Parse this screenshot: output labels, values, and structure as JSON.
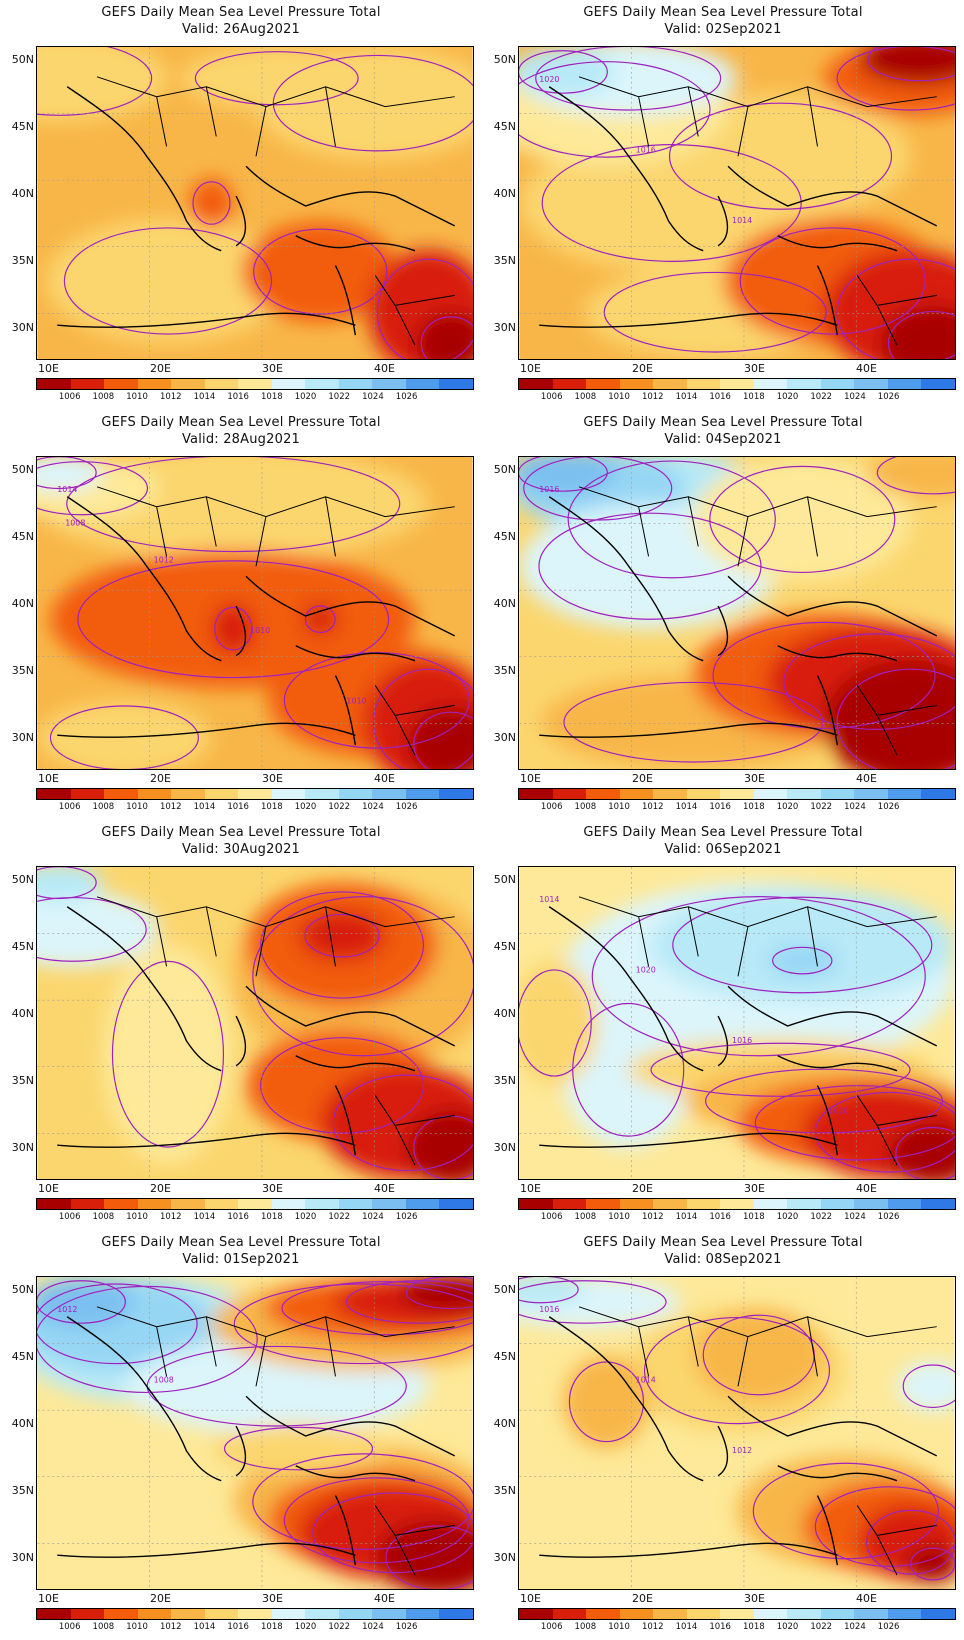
{
  "title_prefix": "GEFS Daily Mean Sea Level Pressure Total",
  "colorbar": {
    "colors": [
      "#a80000",
      "#d81f0a",
      "#f25c0a",
      "#f59021",
      "#f8b648",
      "#fbd66e",
      "#fde999",
      "#dbf5fb",
      "#b7e9f7",
      "#95d6f4",
      "#7abff0",
      "#4f9cec",
      "#2f79e6"
    ],
    "labels": [
      "1006",
      "1008",
      "1010",
      "1012",
      "1014",
      "1016",
      "1018",
      "1020",
      "1022",
      "1024",
      "1026"
    ]
  },
  "lat_labels": [
    "50N",
    "45N",
    "40N",
    "35N",
    "30N"
  ],
  "lon_labels": [
    "10E",
    "20E",
    "30E",
    "40E"
  ],
  "panels": [
    {
      "title": "GEFS Daily Mean Sea Level Pressure Total",
      "valid": "Valid: 26Aug2021",
      "bg": "#f8b648",
      "blobs": [
        [
          "#fbd66e",
          0.05,
          0.1,
          0.25,
          0.14
        ],
        [
          "#fbd66e",
          0.78,
          0.18,
          0.28,
          0.18
        ],
        [
          "#fbd66e",
          0.3,
          0.75,
          0.28,
          0.2
        ],
        [
          "#fbd66e",
          0.55,
          0.1,
          0.22,
          0.1
        ],
        [
          "#f25c0a",
          0.4,
          0.5,
          0.05,
          0.08
        ],
        [
          "#f25c0a",
          0.65,
          0.72,
          0.18,
          0.16
        ],
        [
          "#d81f0a",
          0.9,
          0.85,
          0.14,
          0.2
        ],
        [
          "#a80000",
          0.95,
          0.95,
          0.08,
          0.1
        ]
      ],
      "contour_labels": []
    },
    {
      "title": "GEFS Daily Mean Sea Level Pressure Total",
      "valid": "Valid: 02Sep2021",
      "bg": "#f8b648",
      "blobs": [
        [
          "#fbd66e",
          0.35,
          0.5,
          0.35,
          0.22
        ],
        [
          "#fbd66e",
          0.6,
          0.35,
          0.3,
          0.2
        ],
        [
          "#fde999",
          0.2,
          0.2,
          0.28,
          0.18
        ],
        [
          "#dbf5fb",
          0.25,
          0.1,
          0.25,
          0.12
        ],
        [
          "#b7e9f7",
          0.1,
          0.08,
          0.12,
          0.08
        ],
        [
          "#fbd66e",
          0.45,
          0.85,
          0.3,
          0.15
        ],
        [
          "#f25c0a",
          0.72,
          0.75,
          0.25,
          0.2
        ],
        [
          "#d81f0a",
          0.9,
          0.85,
          0.2,
          0.2
        ],
        [
          "#a80000",
          0.95,
          0.95,
          0.12,
          0.12
        ],
        [
          "#f25c0a",
          0.9,
          0.1,
          0.2,
          0.12
        ],
        [
          "#a80000",
          0.92,
          0.04,
          0.14,
          0.08
        ]
      ],
      "contour_labels": [
        "1020",
        "1016",
        "1014"
      ]
    },
    {
      "title": "GEFS Daily Mean Sea Level Pressure Total",
      "valid": "Valid: 28Aug2021",
      "bg": "#f8b648",
      "blobs": [
        [
          "#fbd66e",
          0.45,
          0.15,
          0.45,
          0.18
        ],
        [
          "#fde999",
          0.1,
          0.1,
          0.18,
          0.1
        ],
        [
          "#dbf5fb",
          0.05,
          0.05,
          0.1,
          0.06
        ],
        [
          "#f25c0a",
          0.45,
          0.52,
          0.42,
          0.22
        ],
        [
          "#d81f0a",
          0.45,
          0.55,
          0.05,
          0.08
        ],
        [
          "#d81f0a",
          0.65,
          0.52,
          0.04,
          0.05
        ],
        [
          "#f25c0a",
          0.78,
          0.78,
          0.25,
          0.18
        ],
        [
          "#d81f0a",
          0.9,
          0.85,
          0.15,
          0.2
        ],
        [
          "#a80000",
          0.95,
          0.92,
          0.1,
          0.12
        ],
        [
          "#fbd66e",
          0.2,
          0.9,
          0.2,
          0.12
        ]
      ],
      "contour_labels": [
        "1014",
        "1012",
        "1010",
        "1010",
        "1008"
      ]
    },
    {
      "title": "GEFS Daily Mean Sea Level Pressure Total",
      "valid": "Valid: 04Sep2021",
      "bg": "#fbd66e",
      "blobs": [
        [
          "#b7e9f7",
          0.35,
          0.2,
          0.28,
          0.22
        ],
        [
          "#95d6f4",
          0.18,
          0.1,
          0.2,
          0.12
        ],
        [
          "#7abff0",
          0.1,
          0.05,
          0.12,
          0.07
        ],
        [
          "#dbf5fb",
          0.3,
          0.35,
          0.3,
          0.2
        ],
        [
          "#fde999",
          0.65,
          0.2,
          0.25,
          0.2
        ],
        [
          "#f8b648",
          0.4,
          0.85,
          0.35,
          0.15
        ],
        [
          "#f25c0a",
          0.7,
          0.7,
          0.3,
          0.2
        ],
        [
          "#d81f0a",
          0.82,
          0.72,
          0.25,
          0.18
        ],
        [
          "#a80000",
          0.9,
          0.85,
          0.2,
          0.2
        ],
        [
          "#f8b648",
          0.95,
          0.05,
          0.15,
          0.08
        ]
      ],
      "contour_labels": [
        "1016"
      ]
    },
    {
      "title": "GEFS Daily Mean Sea Level Pressure Total",
      "valid": "Valid: 30Aug2021",
      "bg": "#fbd66e",
      "blobs": [
        [
          "#fde999",
          0.3,
          0.6,
          0.15,
          0.35
        ],
        [
          "#dbf5fb",
          0.08,
          0.2,
          0.2,
          0.12
        ],
        [
          "#b7e9f7",
          0.05,
          0.05,
          0.1,
          0.06
        ],
        [
          "#f8b648",
          0.75,
          0.35,
          0.3,
          0.3
        ],
        [
          "#f25c0a",
          0.7,
          0.25,
          0.22,
          0.2
        ],
        [
          "#d81f0a",
          0.7,
          0.22,
          0.1,
          0.08
        ],
        [
          "#f25c0a",
          0.7,
          0.7,
          0.22,
          0.18
        ],
        [
          "#d81f0a",
          0.85,
          0.82,
          0.2,
          0.18
        ],
        [
          "#a80000",
          0.95,
          0.9,
          0.1,
          0.12
        ]
      ],
      "contour_labels": []
    },
    {
      "title": "GEFS Daily Mean Sea Level Pressure Total",
      "valid": "Valid: 06Sep2021",
      "bg": "#fde999",
      "blobs": [
        [
          "#dbf5fb",
          0.55,
          0.35,
          0.45,
          0.3
        ],
        [
          "#dbf5fb",
          0.25,
          0.65,
          0.15,
          0.25
        ],
        [
          "#b7e9f7",
          0.65,
          0.25,
          0.35,
          0.18
        ],
        [
          "#95d6f4",
          0.65,
          0.3,
          0.08,
          0.05
        ],
        [
          "#fbd66e",
          0.6,
          0.65,
          0.35,
          0.1
        ],
        [
          "#f8b648",
          0.7,
          0.75,
          0.32,
          0.12
        ],
        [
          "#f25c0a",
          0.78,
          0.82,
          0.28,
          0.14
        ],
        [
          "#d81f0a",
          0.85,
          0.85,
          0.2,
          0.15
        ],
        [
          "#a80000",
          0.95,
          0.92,
          0.1,
          0.1
        ],
        [
          "#fbd66e",
          0.08,
          0.5,
          0.1,
          0.2
        ]
      ],
      "contour_labels": [
        "1014",
        "1020",
        "1016",
        "1010"
      ]
    },
    {
      "title": "GEFS Daily Mean Sea Level Pressure Total",
      "valid": "Valid: 01Sep2021",
      "bg": "#fde999",
      "blobs": [
        [
          "#b7e9f7",
          0.25,
          0.2,
          0.3,
          0.2
        ],
        [
          "#95d6f4",
          0.18,
          0.15,
          0.22,
          0.15
        ],
        [
          "#7abff0",
          0.1,
          0.08,
          0.12,
          0.08
        ],
        [
          "#dbf5fb",
          0.55,
          0.35,
          0.35,
          0.15
        ],
        [
          "#f8b648",
          0.75,
          0.15,
          0.35,
          0.15
        ],
        [
          "#f25c0a",
          0.8,
          0.1,
          0.28,
          0.1
        ],
        [
          "#d81f0a",
          0.88,
          0.08,
          0.2,
          0.08
        ],
        [
          "#a80000",
          0.95,
          0.05,
          0.12,
          0.06
        ],
        [
          "#f8b648",
          0.75,
          0.72,
          0.3,
          0.18
        ],
        [
          "#f25c0a",
          0.78,
          0.78,
          0.25,
          0.16
        ],
        [
          "#d81f0a",
          0.82,
          0.82,
          0.22,
          0.15
        ],
        [
          "#a80000",
          0.92,
          0.9,
          0.14,
          0.12
        ],
        [
          "#fbd66e",
          0.6,
          0.55,
          0.2,
          0.08
        ]
      ],
      "contour_labels": [
        "1012",
        "1008"
      ]
    },
    {
      "title": "GEFS Daily Mean Sea Level Pressure Total",
      "valid": "Valid: 08Sep2021",
      "bg": "#fde999",
      "blobs": [
        [
          "#dbf5fb",
          0.15,
          0.08,
          0.22,
          0.08
        ],
        [
          "#b7e9f7",
          0.05,
          0.04,
          0.1,
          0.05
        ],
        [
          "#fbd66e",
          0.5,
          0.3,
          0.25,
          0.2
        ],
        [
          "#f8b648",
          0.55,
          0.25,
          0.15,
          0.15
        ],
        [
          "#f8b648",
          0.2,
          0.4,
          0.1,
          0.15
        ],
        [
          "#dbf5fb",
          0.95,
          0.35,
          0.08,
          0.08
        ],
        [
          "#f8b648",
          0.75,
          0.75,
          0.25,
          0.18
        ],
        [
          "#f25c0a",
          0.85,
          0.8,
          0.2,
          0.15
        ],
        [
          "#d81f0a",
          0.9,
          0.85,
          0.12,
          0.12
        ],
        [
          "#a80000",
          0.95,
          0.92,
          0.06,
          0.06
        ]
      ],
      "contour_labels": [
        "1016",
        "1014",
        "1012"
      ]
    }
  ]
}
